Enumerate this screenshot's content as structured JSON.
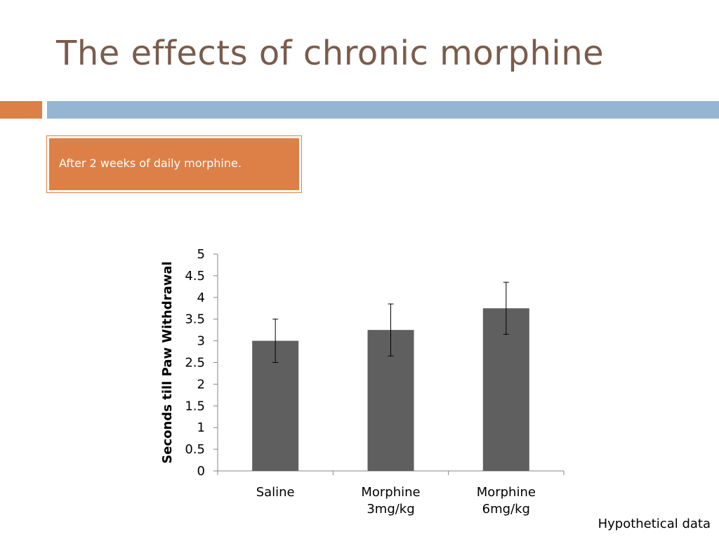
{
  "slide": {
    "title": "The effects of chronic morphine",
    "callout": "After 2 weeks of daily morphine.",
    "footnote": "Hypothetical data"
  },
  "colors": {
    "title": "#7a5c4c",
    "accent_orange": "#dd8047",
    "accent_blue": "#94b6d2",
    "bar_fill": "#5f5f5f"
  },
  "chart_data": {
    "type": "bar",
    "categories": [
      [
        "Saline"
      ],
      [
        "Morphine",
        "3mg/kg"
      ],
      [
        "Morphine",
        "6mg/kg"
      ]
    ],
    "values": [
      3.0,
      3.25,
      3.75
    ],
    "error_bars": [
      0.5,
      0.6,
      0.6
    ],
    "ylabel": "Seconds till Paw Withdrawal",
    "ylim": [
      0,
      5
    ],
    "yticks": [
      "0",
      "0.5",
      "1",
      "1.5",
      "2",
      "2.5",
      "3",
      "3.5",
      "4",
      "4.5",
      "5"
    ],
    "grid": false,
    "legend": "none"
  }
}
